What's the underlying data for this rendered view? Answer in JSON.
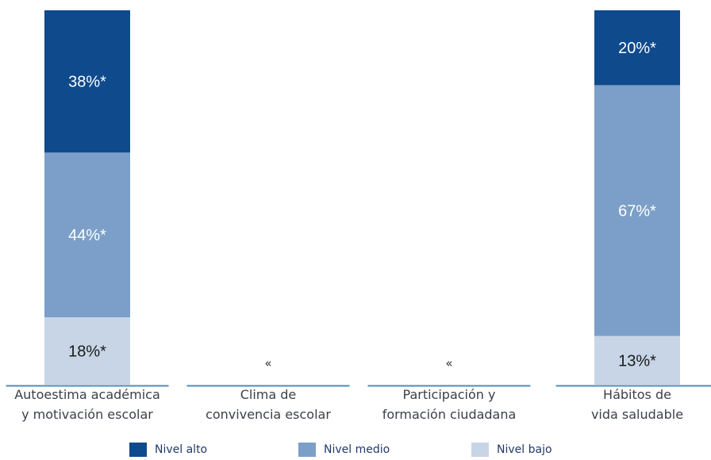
{
  "colors": {
    "nivel_alto": "#0f4a8c",
    "nivel_medio": "#7b9fc8",
    "nivel_bajo": "#c7d5e6",
    "baseline": "#4f8bbf"
  },
  "chart_data": {
    "type": "bar",
    "stacked": true,
    "categories": [
      [
        "Autoestima académica",
        "y motivación escolar"
      ],
      [
        "Clima de",
        "convivencia escolar"
      ],
      [
        "Participación y",
        "formación ciudadana"
      ],
      [
        "Hábitos de",
        "vida saludable"
      ]
    ],
    "series": [
      {
        "name": "Nivel bajo",
        "values": [
          18,
          null,
          null,
          13
        ],
        "labels": [
          "18%*",
          "",
          "",
          "13%*"
        ]
      },
      {
        "name": "Nivel medio",
        "values": [
          44,
          null,
          null,
          67
        ],
        "labels": [
          "44%*",
          "",
          "",
          "67%*"
        ]
      },
      {
        "name": "Nivel alto",
        "values": [
          38,
          null,
          null,
          20
        ],
        "labels": [
          "38%*",
          "",
          "",
          "20%*"
        ]
      }
    ],
    "missing_markers": [
      "",
      "«",
      "«",
      ""
    ],
    "ylim": [
      0,
      100
    ],
    "legend": [
      "Nivel alto",
      "Nivel medio",
      "Nivel bajo"
    ],
    "legend_position": "bottom"
  }
}
